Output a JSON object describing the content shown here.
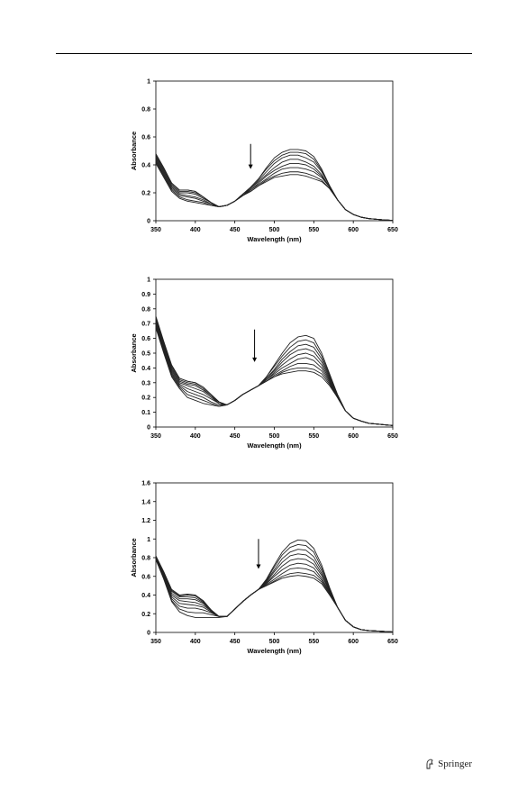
{
  "publisher": {
    "name": "Springer"
  },
  "colors": {
    "line": "#222222",
    "axis": "#000000"
  },
  "chart_data": [
    {
      "type": "line",
      "xlabel": "Wavelength (nm)",
      "ylabel": "Absorbance",
      "xlim": [
        350,
        650
      ],
      "ylim": [
        0,
        1
      ],
      "xticks": [
        350,
        400,
        450,
        500,
        550,
        600,
        650
      ],
      "yticks": [
        0,
        0.2,
        0.4,
        0.6,
        0.8,
        1
      ],
      "grid": false,
      "annotation": "downward arrow near 470 nm (decreasing absorbance)",
      "arrow": {
        "x": 470,
        "y_from": 0.55,
        "y_to": 0.37
      },
      "x": [
        350,
        360,
        370,
        380,
        390,
        400,
        410,
        420,
        430,
        440,
        450,
        460,
        470,
        480,
        490,
        500,
        510,
        520,
        530,
        540,
        550,
        560,
        570,
        580,
        590,
        600,
        610,
        620,
        630,
        640,
        650
      ],
      "series": [
        {
          "values": [
            0.48,
            0.38,
            0.27,
            0.22,
            0.22,
            0.21,
            0.17,
            0.13,
            0.1,
            0.11,
            0.14,
            0.19,
            0.24,
            0.3,
            0.38,
            0.45,
            0.49,
            0.51,
            0.51,
            0.5,
            0.46,
            0.37,
            0.25,
            0.15,
            0.08,
            0.045,
            0.025,
            0.015,
            0.01,
            0.005,
            0.003
          ]
        },
        {
          "values": [
            0.47,
            0.37,
            0.27,
            0.22,
            0.22,
            0.21,
            0.17,
            0.13,
            0.1,
            0.11,
            0.14,
            0.19,
            0.24,
            0.3,
            0.37,
            0.43,
            0.47,
            0.49,
            0.49,
            0.48,
            0.44,
            0.36,
            0.25,
            0.15,
            0.08,
            0.045,
            0.025,
            0.015,
            0.01,
            0.005,
            0.003
          ]
        },
        {
          "values": [
            0.46,
            0.36,
            0.26,
            0.21,
            0.21,
            0.2,
            0.17,
            0.13,
            0.1,
            0.11,
            0.14,
            0.19,
            0.23,
            0.29,
            0.35,
            0.41,
            0.45,
            0.47,
            0.47,
            0.45,
            0.42,
            0.35,
            0.25,
            0.15,
            0.08,
            0.045,
            0.025,
            0.015,
            0.01,
            0.005,
            0.003
          ]
        },
        {
          "values": [
            0.45,
            0.35,
            0.25,
            0.2,
            0.2,
            0.19,
            0.16,
            0.13,
            0.1,
            0.11,
            0.14,
            0.18,
            0.23,
            0.28,
            0.33,
            0.38,
            0.42,
            0.44,
            0.44,
            0.42,
            0.39,
            0.33,
            0.24,
            0.15,
            0.08,
            0.045,
            0.025,
            0.015,
            0.01,
            0.005,
            0.003
          ]
        },
        {
          "values": [
            0.44,
            0.34,
            0.24,
            0.19,
            0.18,
            0.17,
            0.15,
            0.12,
            0.1,
            0.11,
            0.14,
            0.18,
            0.22,
            0.27,
            0.32,
            0.36,
            0.39,
            0.41,
            0.41,
            0.4,
            0.37,
            0.32,
            0.24,
            0.15,
            0.08,
            0.045,
            0.025,
            0.015,
            0.01,
            0.005,
            0.003
          ]
        },
        {
          "values": [
            0.43,
            0.33,
            0.23,
            0.18,
            0.17,
            0.16,
            0.14,
            0.12,
            0.1,
            0.11,
            0.14,
            0.18,
            0.22,
            0.26,
            0.3,
            0.34,
            0.37,
            0.38,
            0.38,
            0.37,
            0.35,
            0.31,
            0.24,
            0.15,
            0.08,
            0.045,
            0.025,
            0.015,
            0.01,
            0.005,
            0.003
          ]
        },
        {
          "values": [
            0.42,
            0.32,
            0.22,
            0.17,
            0.15,
            0.14,
            0.13,
            0.11,
            0.1,
            0.11,
            0.14,
            0.18,
            0.21,
            0.25,
            0.29,
            0.32,
            0.34,
            0.35,
            0.35,
            0.34,
            0.32,
            0.29,
            0.23,
            0.15,
            0.08,
            0.045,
            0.025,
            0.015,
            0.01,
            0.005,
            0.003
          ]
        },
        {
          "values": [
            0.41,
            0.31,
            0.21,
            0.16,
            0.14,
            0.13,
            0.12,
            0.11,
            0.1,
            0.11,
            0.14,
            0.18,
            0.21,
            0.25,
            0.28,
            0.31,
            0.32,
            0.33,
            0.33,
            0.32,
            0.3,
            0.28,
            0.23,
            0.15,
            0.08,
            0.045,
            0.025,
            0.015,
            0.01,
            0.005,
            0.003
          ]
        }
      ]
    },
    {
      "type": "line",
      "xlabel": "Wavelength (nm)",
      "ylabel": "Absorbance",
      "xlim": [
        350,
        650
      ],
      "ylim": [
        0,
        1
      ],
      "xticks": [
        350,
        400,
        450,
        500,
        550,
        600,
        650
      ],
      "yticks": [
        0,
        0.1,
        0.2,
        0.3,
        0.4,
        0.5,
        0.6,
        0.7,
        0.8,
        0.9,
        1
      ],
      "grid": false,
      "annotation": "downward arrow near 475 nm (decreasing absorbance)",
      "arrow": {
        "x": 475,
        "y_from": 0.66,
        "y_to": 0.44
      },
      "x": [
        350,
        360,
        370,
        380,
        390,
        400,
        410,
        420,
        430,
        440,
        450,
        460,
        470,
        480,
        490,
        500,
        510,
        520,
        530,
        540,
        550,
        560,
        570,
        580,
        590,
        600,
        610,
        620,
        630,
        640,
        650
      ],
      "series": [
        {
          "values": [
            0.75,
            0.58,
            0.42,
            0.33,
            0.31,
            0.3,
            0.27,
            0.22,
            0.17,
            0.15,
            0.18,
            0.22,
            0.25,
            0.28,
            0.34,
            0.42,
            0.5,
            0.57,
            0.61,
            0.62,
            0.6,
            0.5,
            0.36,
            0.22,
            0.11,
            0.06,
            0.04,
            0.025,
            0.02,
            0.015,
            0.01
          ]
        },
        {
          "values": [
            0.74,
            0.57,
            0.41,
            0.33,
            0.31,
            0.3,
            0.27,
            0.22,
            0.17,
            0.15,
            0.18,
            0.22,
            0.25,
            0.28,
            0.34,
            0.41,
            0.48,
            0.54,
            0.58,
            0.59,
            0.57,
            0.48,
            0.35,
            0.22,
            0.11,
            0.06,
            0.04,
            0.025,
            0.02,
            0.015,
            0.01
          ]
        },
        {
          "values": [
            0.73,
            0.56,
            0.4,
            0.32,
            0.3,
            0.29,
            0.26,
            0.21,
            0.17,
            0.15,
            0.18,
            0.22,
            0.25,
            0.28,
            0.33,
            0.39,
            0.46,
            0.51,
            0.55,
            0.56,
            0.54,
            0.46,
            0.34,
            0.21,
            0.11,
            0.06,
            0.04,
            0.025,
            0.02,
            0.015,
            0.01
          ]
        },
        {
          "values": [
            0.72,
            0.55,
            0.39,
            0.31,
            0.29,
            0.28,
            0.25,
            0.21,
            0.16,
            0.15,
            0.18,
            0.22,
            0.25,
            0.28,
            0.33,
            0.38,
            0.44,
            0.49,
            0.52,
            0.53,
            0.51,
            0.44,
            0.33,
            0.21,
            0.11,
            0.06,
            0.04,
            0.025,
            0.02,
            0.015,
            0.01
          ]
        },
        {
          "values": [
            0.71,
            0.54,
            0.38,
            0.3,
            0.28,
            0.26,
            0.24,
            0.2,
            0.16,
            0.15,
            0.18,
            0.22,
            0.25,
            0.28,
            0.32,
            0.37,
            0.42,
            0.46,
            0.49,
            0.5,
            0.48,
            0.42,
            0.32,
            0.2,
            0.11,
            0.06,
            0.04,
            0.025,
            0.02,
            0.015,
            0.01
          ]
        },
        {
          "values": [
            0.7,
            0.53,
            0.37,
            0.29,
            0.26,
            0.24,
            0.22,
            0.19,
            0.16,
            0.15,
            0.18,
            0.22,
            0.25,
            0.28,
            0.32,
            0.36,
            0.4,
            0.43,
            0.46,
            0.47,
            0.45,
            0.4,
            0.31,
            0.2,
            0.11,
            0.06,
            0.04,
            0.025,
            0.02,
            0.015,
            0.01
          ]
        },
        {
          "values": [
            0.69,
            0.52,
            0.36,
            0.28,
            0.24,
            0.22,
            0.2,
            0.17,
            0.15,
            0.15,
            0.18,
            0.22,
            0.25,
            0.28,
            0.31,
            0.35,
            0.38,
            0.41,
            0.43,
            0.43,
            0.42,
            0.38,
            0.3,
            0.2,
            0.11,
            0.06,
            0.04,
            0.025,
            0.02,
            0.015,
            0.01
          ]
        },
        {
          "values": [
            0.68,
            0.51,
            0.35,
            0.27,
            0.22,
            0.2,
            0.18,
            0.16,
            0.14,
            0.15,
            0.18,
            0.22,
            0.25,
            0.28,
            0.31,
            0.34,
            0.37,
            0.39,
            0.4,
            0.4,
            0.39,
            0.36,
            0.29,
            0.2,
            0.11,
            0.06,
            0.04,
            0.025,
            0.02,
            0.015,
            0.01
          ]
        },
        {
          "values": [
            0.67,
            0.5,
            0.34,
            0.26,
            0.2,
            0.18,
            0.16,
            0.15,
            0.14,
            0.15,
            0.18,
            0.22,
            0.25,
            0.28,
            0.31,
            0.34,
            0.36,
            0.37,
            0.38,
            0.38,
            0.37,
            0.34,
            0.28,
            0.2,
            0.11,
            0.06,
            0.04,
            0.025,
            0.02,
            0.015,
            0.01
          ]
        }
      ]
    },
    {
      "type": "line",
      "xlabel": "Wavelength (nm)",
      "ylabel": "Absorbance",
      "xlim": [
        350,
        650
      ],
      "ylim": [
        0,
        1.6
      ],
      "xticks": [
        350,
        400,
        450,
        500,
        550,
        600,
        650
      ],
      "yticks": [
        0,
        0.2,
        0.4,
        0.6,
        0.8,
        1,
        1.2,
        1.4,
        1.6
      ],
      "grid": false,
      "annotation": "downward arrow near 480 nm (decreasing absorbance)",
      "arrow": {
        "x": 480,
        "y_from": 1.0,
        "y_to": 0.68
      },
      "x": [
        350,
        360,
        370,
        380,
        390,
        400,
        410,
        420,
        430,
        440,
        450,
        460,
        470,
        480,
        490,
        500,
        510,
        520,
        530,
        540,
        550,
        560,
        570,
        580,
        590,
        600,
        610,
        620,
        630,
        640,
        650
      ],
      "series": [
        {
          "values": [
            0.82,
            0.65,
            0.46,
            0.4,
            0.41,
            0.4,
            0.34,
            0.24,
            0.17,
            0.17,
            0.25,
            0.33,
            0.4,
            0.46,
            0.57,
            0.72,
            0.86,
            0.95,
            0.99,
            0.98,
            0.9,
            0.72,
            0.48,
            0.27,
            0.13,
            0.06,
            0.03,
            0.02,
            0.015,
            0.01,
            0.005
          ]
        },
        {
          "values": [
            0.81,
            0.64,
            0.45,
            0.39,
            0.4,
            0.39,
            0.33,
            0.24,
            0.17,
            0.17,
            0.25,
            0.33,
            0.4,
            0.46,
            0.56,
            0.7,
            0.83,
            0.91,
            0.94,
            0.93,
            0.86,
            0.69,
            0.47,
            0.27,
            0.13,
            0.06,
            0.03,
            0.02,
            0.015,
            0.01,
            0.005
          ]
        },
        {
          "values": [
            0.8,
            0.63,
            0.44,
            0.38,
            0.38,
            0.37,
            0.32,
            0.24,
            0.17,
            0.17,
            0.25,
            0.33,
            0.4,
            0.46,
            0.55,
            0.67,
            0.79,
            0.86,
            0.89,
            0.88,
            0.81,
            0.66,
            0.46,
            0.27,
            0.13,
            0.06,
            0.03,
            0.02,
            0.015,
            0.01,
            0.005
          ]
        },
        {
          "values": [
            0.8,
            0.62,
            0.42,
            0.36,
            0.36,
            0.35,
            0.31,
            0.23,
            0.17,
            0.17,
            0.25,
            0.33,
            0.4,
            0.46,
            0.54,
            0.65,
            0.75,
            0.82,
            0.84,
            0.83,
            0.77,
            0.63,
            0.45,
            0.27,
            0.13,
            0.06,
            0.03,
            0.02,
            0.015,
            0.01,
            0.005
          ]
        },
        {
          "values": [
            0.79,
            0.61,
            0.4,
            0.34,
            0.33,
            0.32,
            0.29,
            0.23,
            0.17,
            0.17,
            0.25,
            0.33,
            0.4,
            0.46,
            0.53,
            0.62,
            0.71,
            0.77,
            0.79,
            0.78,
            0.73,
            0.61,
            0.44,
            0.27,
            0.13,
            0.06,
            0.03,
            0.02,
            0.015,
            0.01,
            0.005
          ]
        },
        {
          "values": [
            0.79,
            0.6,
            0.38,
            0.31,
            0.3,
            0.29,
            0.27,
            0.22,
            0.17,
            0.17,
            0.25,
            0.33,
            0.4,
            0.46,
            0.52,
            0.6,
            0.67,
            0.72,
            0.74,
            0.73,
            0.69,
            0.58,
            0.43,
            0.27,
            0.13,
            0.06,
            0.03,
            0.02,
            0.015,
            0.01,
            0.005
          ]
        },
        {
          "values": [
            0.78,
            0.59,
            0.36,
            0.28,
            0.26,
            0.26,
            0.24,
            0.21,
            0.17,
            0.17,
            0.25,
            0.33,
            0.4,
            0.46,
            0.51,
            0.57,
            0.63,
            0.68,
            0.69,
            0.68,
            0.65,
            0.56,
            0.42,
            0.27,
            0.13,
            0.06,
            0.03,
            0.02,
            0.015,
            0.01,
            0.005
          ]
        },
        {
          "values": [
            0.78,
            0.58,
            0.34,
            0.25,
            0.22,
            0.21,
            0.21,
            0.19,
            0.17,
            0.17,
            0.25,
            0.33,
            0.4,
            0.46,
            0.5,
            0.55,
            0.6,
            0.63,
            0.64,
            0.63,
            0.61,
            0.54,
            0.41,
            0.27,
            0.13,
            0.06,
            0.03,
            0.02,
            0.015,
            0.01,
            0.005
          ]
        },
        {
          "values": [
            0.78,
            0.57,
            0.33,
            0.22,
            0.18,
            0.16,
            0.16,
            0.16,
            0.16,
            0.17,
            0.25,
            0.33,
            0.4,
            0.46,
            0.5,
            0.54,
            0.58,
            0.6,
            0.61,
            0.6,
            0.58,
            0.52,
            0.4,
            0.27,
            0.13,
            0.06,
            0.03,
            0.02,
            0.015,
            0.01,
            0.005
          ]
        }
      ]
    }
  ]
}
